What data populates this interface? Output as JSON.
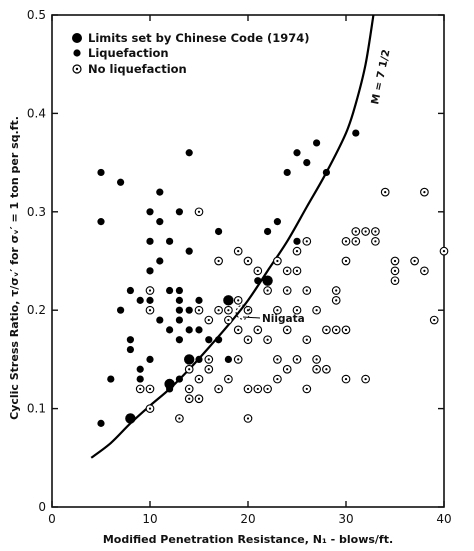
{
  "chart_data": {
    "type": "scatter",
    "xlabel": "Modified Penetration Resistance, N₁ - blows/ft.",
    "ylabel": "Cyclic Stress Ratio, τ/σᵥ′ for σᵥ′ = 1 ton per sq.ft.",
    "xlim": [
      0,
      40
    ],
    "ylim": [
      0,
      0.5
    ],
    "x_ticks": [
      "0",
      "10",
      "20",
      "30",
      "40"
    ],
    "y_ticks": [
      "0",
      "0.1",
      "0.2",
      "0.3",
      "0.4",
      "0.5"
    ],
    "legend": {
      "placement": "top-left",
      "entries": [
        "Limits set by Chinese Code (1974)",
        "Liquefaction",
        "No liquefaction"
      ]
    },
    "annotations": {
      "curve_label": "M = 7 1/2",
      "niigata": "Niigata",
      "niigata_point": [
        19.5,
        0.198
      ]
    },
    "series": [
      {
        "name": "Limits set by Chinese Code (1974)",
        "marker": "large-filled",
        "points": [
          [
            8,
            0.09
          ],
          [
            12,
            0.125
          ],
          [
            14,
            0.15
          ],
          [
            18,
            0.21
          ],
          [
            22,
            0.23
          ]
        ]
      },
      {
        "name": "Liquefaction",
        "marker": "filled",
        "points": [
          [
            5,
            0.34
          ],
          [
            5,
            0.29
          ],
          [
            5,
            0.085
          ],
          [
            6,
            0.13
          ],
          [
            7,
            0.33
          ],
          [
            7,
            0.2
          ],
          [
            8,
            0.22
          ],
          [
            8,
            0.17
          ],
          [
            8,
            0.16
          ],
          [
            8,
            0.09
          ],
          [
            9,
            0.21
          ],
          [
            9,
            0.14
          ],
          [
            9,
            0.13
          ],
          [
            10,
            0.3
          ],
          [
            10,
            0.27
          ],
          [
            10,
            0.24
          ],
          [
            10,
            0.21
          ],
          [
            10,
            0.15
          ],
          [
            11,
            0.32
          ],
          [
            11,
            0.29
          ],
          [
            11,
            0.25
          ],
          [
            11,
            0.19
          ],
          [
            12,
            0.27
          ],
          [
            12,
            0.22
          ],
          [
            12,
            0.18
          ],
          [
            12,
            0.12
          ],
          [
            13,
            0.3
          ],
          [
            13,
            0.22
          ],
          [
            13,
            0.21
          ],
          [
            13,
            0.2
          ],
          [
            13,
            0.19
          ],
          [
            13,
            0.17
          ],
          [
            13,
            0.13
          ],
          [
            14,
            0.36
          ],
          [
            14,
            0.26
          ],
          [
            14,
            0.2
          ],
          [
            14,
            0.18
          ],
          [
            14,
            0.15
          ],
          [
            15,
            0.21
          ],
          [
            15,
            0.2
          ],
          [
            15,
            0.18
          ],
          [
            15,
            0.15
          ],
          [
            16,
            0.17
          ],
          [
            16,
            0.15
          ],
          [
            17,
            0.28
          ],
          [
            17,
            0.17
          ],
          [
            18,
            0.15
          ],
          [
            21,
            0.23
          ],
          [
            22,
            0.28
          ],
          [
            22,
            0.23
          ],
          [
            23,
            0.29
          ],
          [
            24,
            0.34
          ],
          [
            25,
            0.36
          ],
          [
            25,
            0.27
          ],
          [
            26,
            0.35
          ],
          [
            27,
            0.37
          ],
          [
            28,
            0.34
          ],
          [
            31,
            0.38
          ]
        ]
      },
      {
        "name": "No liquefaction",
        "marker": "open-circle",
        "points": [
          [
            9,
            0.12
          ],
          [
            10,
            0.22
          ],
          [
            10,
            0.2
          ],
          [
            10,
            0.12
          ],
          [
            10,
            0.1
          ],
          [
            13,
            0.09
          ],
          [
            14,
            0.14
          ],
          [
            14,
            0.11
          ],
          [
            14,
            0.12
          ],
          [
            15,
            0.3
          ],
          [
            15,
            0.2
          ],
          [
            15,
            0.13
          ],
          [
            15,
            0.11
          ],
          [
            16,
            0.19
          ],
          [
            16,
            0.15
          ],
          [
            16,
            0.14
          ],
          [
            17,
            0.25
          ],
          [
            17,
            0.2
          ],
          [
            17,
            0.12
          ],
          [
            18,
            0.2
          ],
          [
            18,
            0.19
          ],
          [
            18,
            0.13
          ],
          [
            19,
            0.26
          ],
          [
            19,
            0.21
          ],
          [
            19,
            0.18
          ],
          [
            19,
            0.15
          ],
          [
            20,
            0.25
          ],
          [
            20,
            0.2
          ],
          [
            20,
            0.17
          ],
          [
            20,
            0.12
          ],
          [
            20,
            0.09
          ],
          [
            21,
            0.24
          ],
          [
            21,
            0.18
          ],
          [
            21,
            0.12
          ],
          [
            22,
            0.22
          ],
          [
            22,
            0.17
          ],
          [
            22,
            0.12
          ],
          [
            23,
            0.25
          ],
          [
            23,
            0.2
          ],
          [
            23,
            0.15
          ],
          [
            23,
            0.13
          ],
          [
            24,
            0.24
          ],
          [
            24,
            0.22
          ],
          [
            24,
            0.18
          ],
          [
            24,
            0.14
          ],
          [
            25,
            0.26
          ],
          [
            25,
            0.24
          ],
          [
            25,
            0.2
          ],
          [
            25,
            0.15
          ],
          [
            26,
            0.27
          ],
          [
            26,
            0.22
          ],
          [
            26,
            0.17
          ],
          [
            26,
            0.12
          ],
          [
            27,
            0.2
          ],
          [
            27,
            0.15
          ],
          [
            27,
            0.14
          ],
          [
            28,
            0.18
          ],
          [
            28,
            0.14
          ],
          [
            29,
            0.22
          ],
          [
            29,
            0.21
          ],
          [
            29,
            0.18
          ],
          [
            30,
            0.27
          ],
          [
            30,
            0.25
          ],
          [
            30,
            0.18
          ],
          [
            30,
            0.13
          ],
          [
            31,
            0.28
          ],
          [
            31,
            0.27
          ],
          [
            32,
            0.28
          ],
          [
            32,
            0.13
          ],
          [
            33,
            0.28
          ],
          [
            33,
            0.27
          ],
          [
            34,
            0.32
          ],
          [
            35,
            0.25
          ],
          [
            35,
            0.24
          ],
          [
            35,
            0.23
          ],
          [
            37,
            0.25
          ],
          [
            38,
            0.32
          ],
          [
            38,
            0.24
          ],
          [
            39,
            0.19
          ],
          [
            40,
            0.26
          ]
        ]
      }
    ],
    "curve": {
      "label": "M = 7 1/2",
      "points": [
        [
          4,
          0.05
        ],
        [
          6,
          0.065
        ],
        [
          8,
          0.085
        ],
        [
          10,
          0.103
        ],
        [
          12,
          0.12
        ],
        [
          14,
          0.14
        ],
        [
          16,
          0.162
        ],
        [
          18,
          0.185
        ],
        [
          20,
          0.21
        ],
        [
          22,
          0.24
        ],
        [
          24,
          0.27
        ],
        [
          26,
          0.305
        ],
        [
          28,
          0.34
        ],
        [
          30,
          0.38
        ],
        [
          31,
          0.41
        ],
        [
          32,
          0.45
        ],
        [
          32.8,
          0.5
        ]
      ]
    }
  }
}
